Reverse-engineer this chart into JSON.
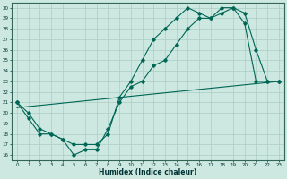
{
  "title": "",
  "xlabel": "Humidex (Indice chaleur)",
  "ylabel": "",
  "bg_color": "#cce8e0",
  "line_color": "#006655",
  "grid_color": "#aaccc4",
  "xlim": [
    -0.5,
    23.5
  ],
  "ylim": [
    15.5,
    30.5
  ],
  "xticks": [
    0,
    1,
    2,
    3,
    4,
    5,
    6,
    7,
    8,
    9,
    10,
    11,
    12,
    13,
    14,
    15,
    16,
    17,
    18,
    19,
    20,
    21,
    22,
    23
  ],
  "yticks": [
    16,
    17,
    18,
    19,
    20,
    21,
    22,
    23,
    24,
    25,
    26,
    27,
    28,
    29,
    30
  ],
  "line1_x": [
    0,
    1,
    2,
    3,
    4,
    5,
    6,
    7,
    8,
    9,
    10,
    11,
    12,
    13,
    14,
    15,
    16,
    17,
    18,
    19,
    20,
    21,
    22,
    23
  ],
  "line1_y": [
    21.0,
    19.5,
    18.0,
    18.0,
    17.5,
    16.0,
    16.5,
    16.5,
    18.5,
    21.0,
    22.5,
    23.0,
    24.5,
    25.0,
    26.5,
    28.0,
    29.0,
    29.0,
    29.5,
    30.0,
    29.5,
    26.0,
    23.0,
    23.0
  ],
  "line2_x": [
    0,
    1,
    2,
    3,
    4,
    5,
    6,
    7,
    8,
    9,
    10,
    11,
    12,
    13,
    14,
    15,
    16,
    17,
    18,
    19,
    20,
    21,
    22,
    23
  ],
  "line2_y": [
    21.0,
    20.0,
    18.5,
    18.0,
    17.5,
    17.0,
    17.0,
    17.0,
    18.0,
    21.5,
    23.0,
    25.0,
    27.0,
    28.0,
    29.0,
    30.0,
    29.5,
    29.0,
    30.0,
    30.0,
    28.5,
    23.0,
    23.0,
    23.0
  ],
  "line3_x": [
    0,
    23
  ],
  "line3_y": [
    20.5,
    23.0
  ]
}
